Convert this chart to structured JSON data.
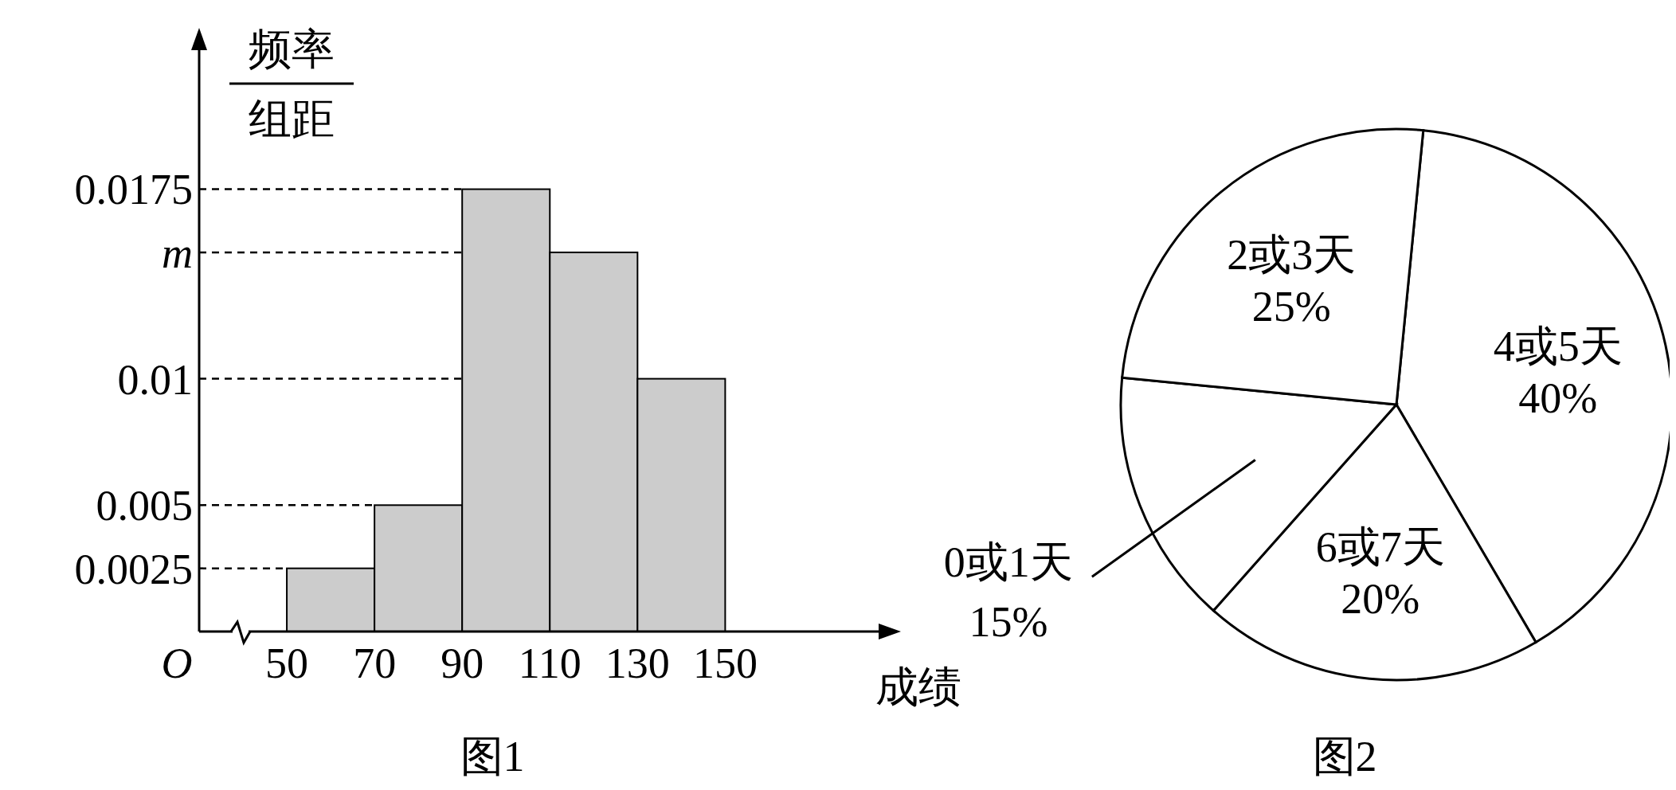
{
  "chart_data": [
    {
      "type": "histogram",
      "title": "图1",
      "xlabel": "成绩",
      "ylabel": "频率组距",
      "bins": [
        50,
        70,
        90,
        110,
        130,
        150
      ],
      "values": [
        0.0025,
        0.005,
        0.0175,
        0.015,
        0.01
      ],
      "color": "#cccccc",
      "xlim": [
        30,
        185
      ],
      "xticks": [
        50,
        70,
        90,
        110,
        130,
        150
      ],
      "ylim": [
        0,
        0.023
      ],
      "yticks": [
        0.0025,
        0.005,
        0.01,
        {
          "value": 0.015,
          "label": "m"
        },
        0.0175
      ],
      "ref_lines": [
        {
          "axis": "y",
          "value": 0.0025,
          "line_style": "dashed"
        },
        {
          "axis": "y",
          "value": 0.005,
          "line_style": "dashed"
        },
        {
          "axis": "y",
          "value": 0.01,
          "line_style": "dashed"
        },
        {
          "axis": "y",
          "value": 0.015,
          "line_style": "dashed"
        },
        {
          "axis": "y",
          "value": 0.0175,
          "line_style": "dashed"
        }
      ],
      "annotations": [
        "O"
      ]
    },
    {
      "type": "pie",
      "title": "图2",
      "categories": [
        "4或5天",
        "6或7天",
        "0或1天",
        "2或3天"
      ],
      "values": [
        40,
        20,
        15,
        25
      ],
      "colors": [
        "#ffffff",
        "#ffffff",
        "#ffffff",
        "#ffffff"
      ],
      "value_labels": [
        "40%",
        "20%",
        "15%",
        "25%"
      ]
    }
  ]
}
